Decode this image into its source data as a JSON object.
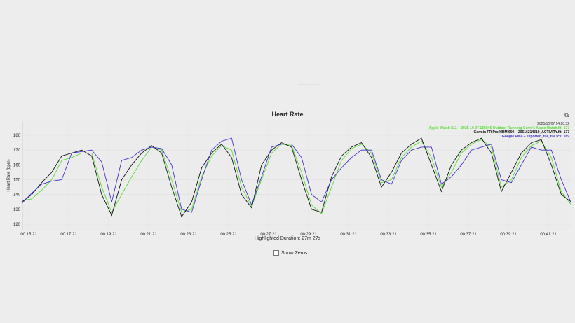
{
  "chart_data": {
    "type": "line",
    "title": "Heart Rate",
    "xlabel": "",
    "ylabel": "Heart Rate (bpm)",
    "ylim": [
      118,
      188
    ],
    "yticks": [
      120,
      130,
      140,
      150,
      160,
      170,
      180
    ],
    "xtick_labels": [
      "00:15:21",
      "00:17:21",
      "00:19:21",
      "00:21:21",
      "00:23:21",
      "00:25:21",
      "00:27:21",
      "00:29:21",
      "00:31:21",
      "00:33:21",
      "00:35:21",
      "00:37:21",
      "00:39:21",
      "00:41:21"
    ],
    "grid": true,
    "legend_position": "top-right",
    "legend_header": "2025/10/07 14:20:32",
    "x": [
      "00:15:00",
      "00:15:30",
      "00:16:00",
      "00:16:30",
      "00:17:00",
      "00:17:30",
      "00:18:00",
      "00:18:30",
      "00:19:00",
      "00:19:30",
      "00:20:00",
      "00:20:30",
      "00:21:00",
      "00:21:30",
      "00:22:00",
      "00:22:30",
      "00:23:00",
      "00:23:30",
      "00:24:00",
      "00:24:30",
      "00:25:00",
      "00:25:30",
      "00:26:00",
      "00:26:30",
      "00:27:00",
      "00:27:30",
      "00:28:00",
      "00:28:30",
      "00:29:00",
      "00:29:30",
      "00:30:00",
      "00:30:30",
      "00:31:00",
      "00:31:30",
      "00:32:00",
      "00:32:30",
      "00:33:00",
      "00:33:30",
      "00:34:00",
      "00:34:30",
      "00:35:00",
      "00:35:30",
      "00:36:00",
      "00:36:30",
      "00:37:00",
      "00:37:30",
      "00:38:00",
      "00:38:30",
      "00:39:00",
      "00:39:30",
      "00:40:00",
      "00:40:30",
      "00:41:00",
      "00:41:30",
      "00:42:00",
      "00:42:30"
    ],
    "series": [
      {
        "name": "Apple Watch S11 – 2025-10-07-135846-Outdoor Running-Cerro's Apple Watch.fit",
        "legend_value": "177",
        "color": "#55dd33",
        "values": [
          136,
          137,
          143,
          150,
          163,
          165,
          168,
          168,
          145,
          128,
          140,
          152,
          163,
          172,
          170,
          150,
          128,
          130,
          152,
          166,
          173,
          170,
          145,
          132,
          150,
          168,
          174,
          173,
          155,
          133,
          127,
          145,
          163,
          171,
          174,
          168,
          148,
          150,
          165,
          172,
          176,
          165,
          145,
          155,
          168,
          174,
          177,
          172,
          145,
          150,
          165,
          173,
          176,
          165,
          142,
          133
        ]
      },
      {
        "name": "Garmin FR Pro/HRM 600 – 20616214319_ACTIVITY.fit",
        "legend_value": "177",
        "color": "#111111",
        "values": [
          135,
          140,
          148,
          155,
          166,
          168,
          170,
          166,
          140,
          126,
          150,
          160,
          168,
          173,
          168,
          145,
          125,
          135,
          158,
          168,
          174,
          165,
          140,
          131,
          160,
          170,
          175,
          172,
          150,
          130,
          128,
          152,
          166,
          172,
          175,
          165,
          145,
          155,
          168,
          174,
          178,
          160,
          142,
          160,
          170,
          175,
          178,
          168,
          142,
          155,
          168,
          175,
          177,
          160,
          140,
          135
        ]
      },
      {
        "name": "Google PW4 – exported_file_file.tcx",
        "legend_value": "169",
        "color": "#4433cc",
        "values": [
          134,
          141,
          147,
          149,
          150,
          168,
          169,
          170,
          162,
          135,
          163,
          165,
          170,
          172,
          171,
          160,
          130,
          128,
          150,
          170,
          176,
          178,
          150,
          133,
          152,
          172,
          174,
          174,
          165,
          140,
          135,
          150,
          158,
          165,
          170,
          170,
          150,
          147,
          163,
          170,
          172,
          172,
          147,
          152,
          160,
          170,
          172,
          174,
          150,
          148,
          160,
          172,
          170,
          170,
          150,
          134
        ]
      }
    ]
  },
  "export_icon": "export-icon",
  "footer": {
    "duration": "Highlighted Duration: 27m 27s",
    "show_zeros": "Show Zeros",
    "show_zeros_checked": false
  }
}
